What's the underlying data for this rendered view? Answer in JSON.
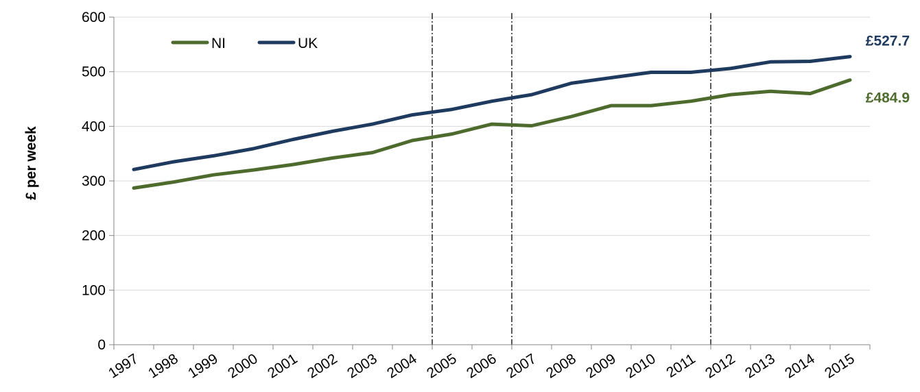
{
  "chart_data": {
    "type": "line",
    "title": "",
    "xlabel": "",
    "ylabel": "£ per week",
    "categories": [
      "1997",
      "1998",
      "1999",
      "2000",
      "2001",
      "2002",
      "2003",
      "2004",
      "2005",
      "2006",
      "2007",
      "2008",
      "2009",
      "2010",
      "2011",
      "2012",
      "2013",
      "2014",
      "2015"
    ],
    "ylim": [
      0,
      600
    ],
    "yticks": [
      "0",
      "100",
      "200",
      "300",
      "400",
      "500",
      "600"
    ],
    "grid": true,
    "legend_position": "top-left",
    "series": [
      {
        "name": "NI",
        "color": "#4e6b2e",
        "values": [
          287,
          298,
          311,
          320,
          330,
          342,
          352,
          374,
          386,
          404,
          401,
          418,
          438,
          438,
          446,
          458,
          464,
          460,
          484.9
        ],
        "end_label": "£484.9"
      },
      {
        "name": "UK",
        "color": "#1f3a5f",
        "values": [
          321,
          335,
          346,
          359,
          376,
          391,
          404,
          421,
          431,
          446,
          458,
          479,
          489,
          499,
          499,
          506,
          518,
          519,
          527.7
        ],
        "end_label": "£527.7"
      }
    ],
    "reference_lines_after": [
      "2004",
      "2006",
      "2011"
    ]
  }
}
